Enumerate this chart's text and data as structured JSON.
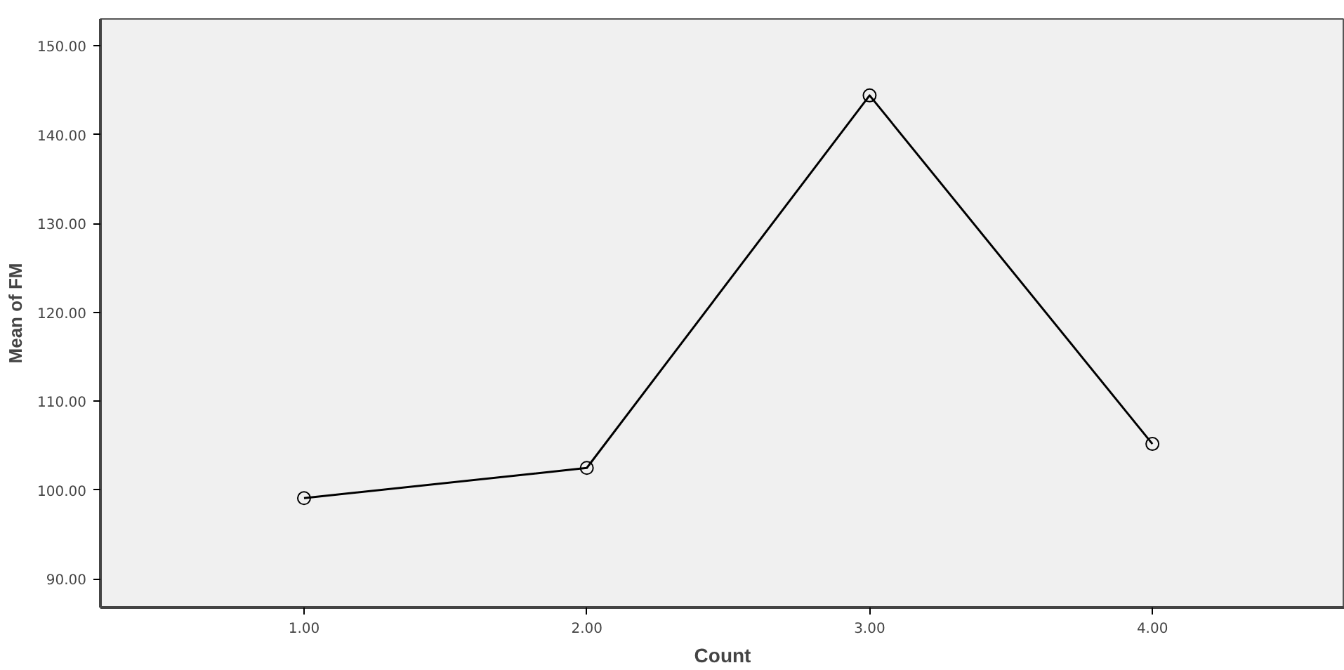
{
  "chart_data": {
    "type": "line",
    "xlabel": "Count",
    "ylabel": "Mean of FM",
    "x": [
      1,
      2,
      3,
      4
    ],
    "series": [
      {
        "color": "#000000",
        "values": [
          99.1,
          102.5,
          144.4,
          105.2
        ]
      }
    ],
    "xlim": [
      0.28,
      4.68
    ],
    "ylim": [
      86.8,
      153
    ],
    "xticks": [
      {
        "value": 1,
        "label": "1.00"
      },
      {
        "value": 2,
        "label": "2.00"
      },
      {
        "value": 3,
        "label": "3.00"
      },
      {
        "value": 4,
        "label": "4.00"
      }
    ],
    "yticks": [
      {
        "value": 90,
        "label": "90.00"
      },
      {
        "value": 100,
        "label": "100.00"
      },
      {
        "value": 110,
        "label": "110.00"
      },
      {
        "value": 120,
        "label": "120.00"
      },
      {
        "value": 130,
        "label": "130.00"
      },
      {
        "value": 140,
        "label": "140.00"
      },
      {
        "value": 150,
        "label": "150.00"
      }
    ],
    "grid": false,
    "marker": "circle",
    "line_style": "solid"
  }
}
